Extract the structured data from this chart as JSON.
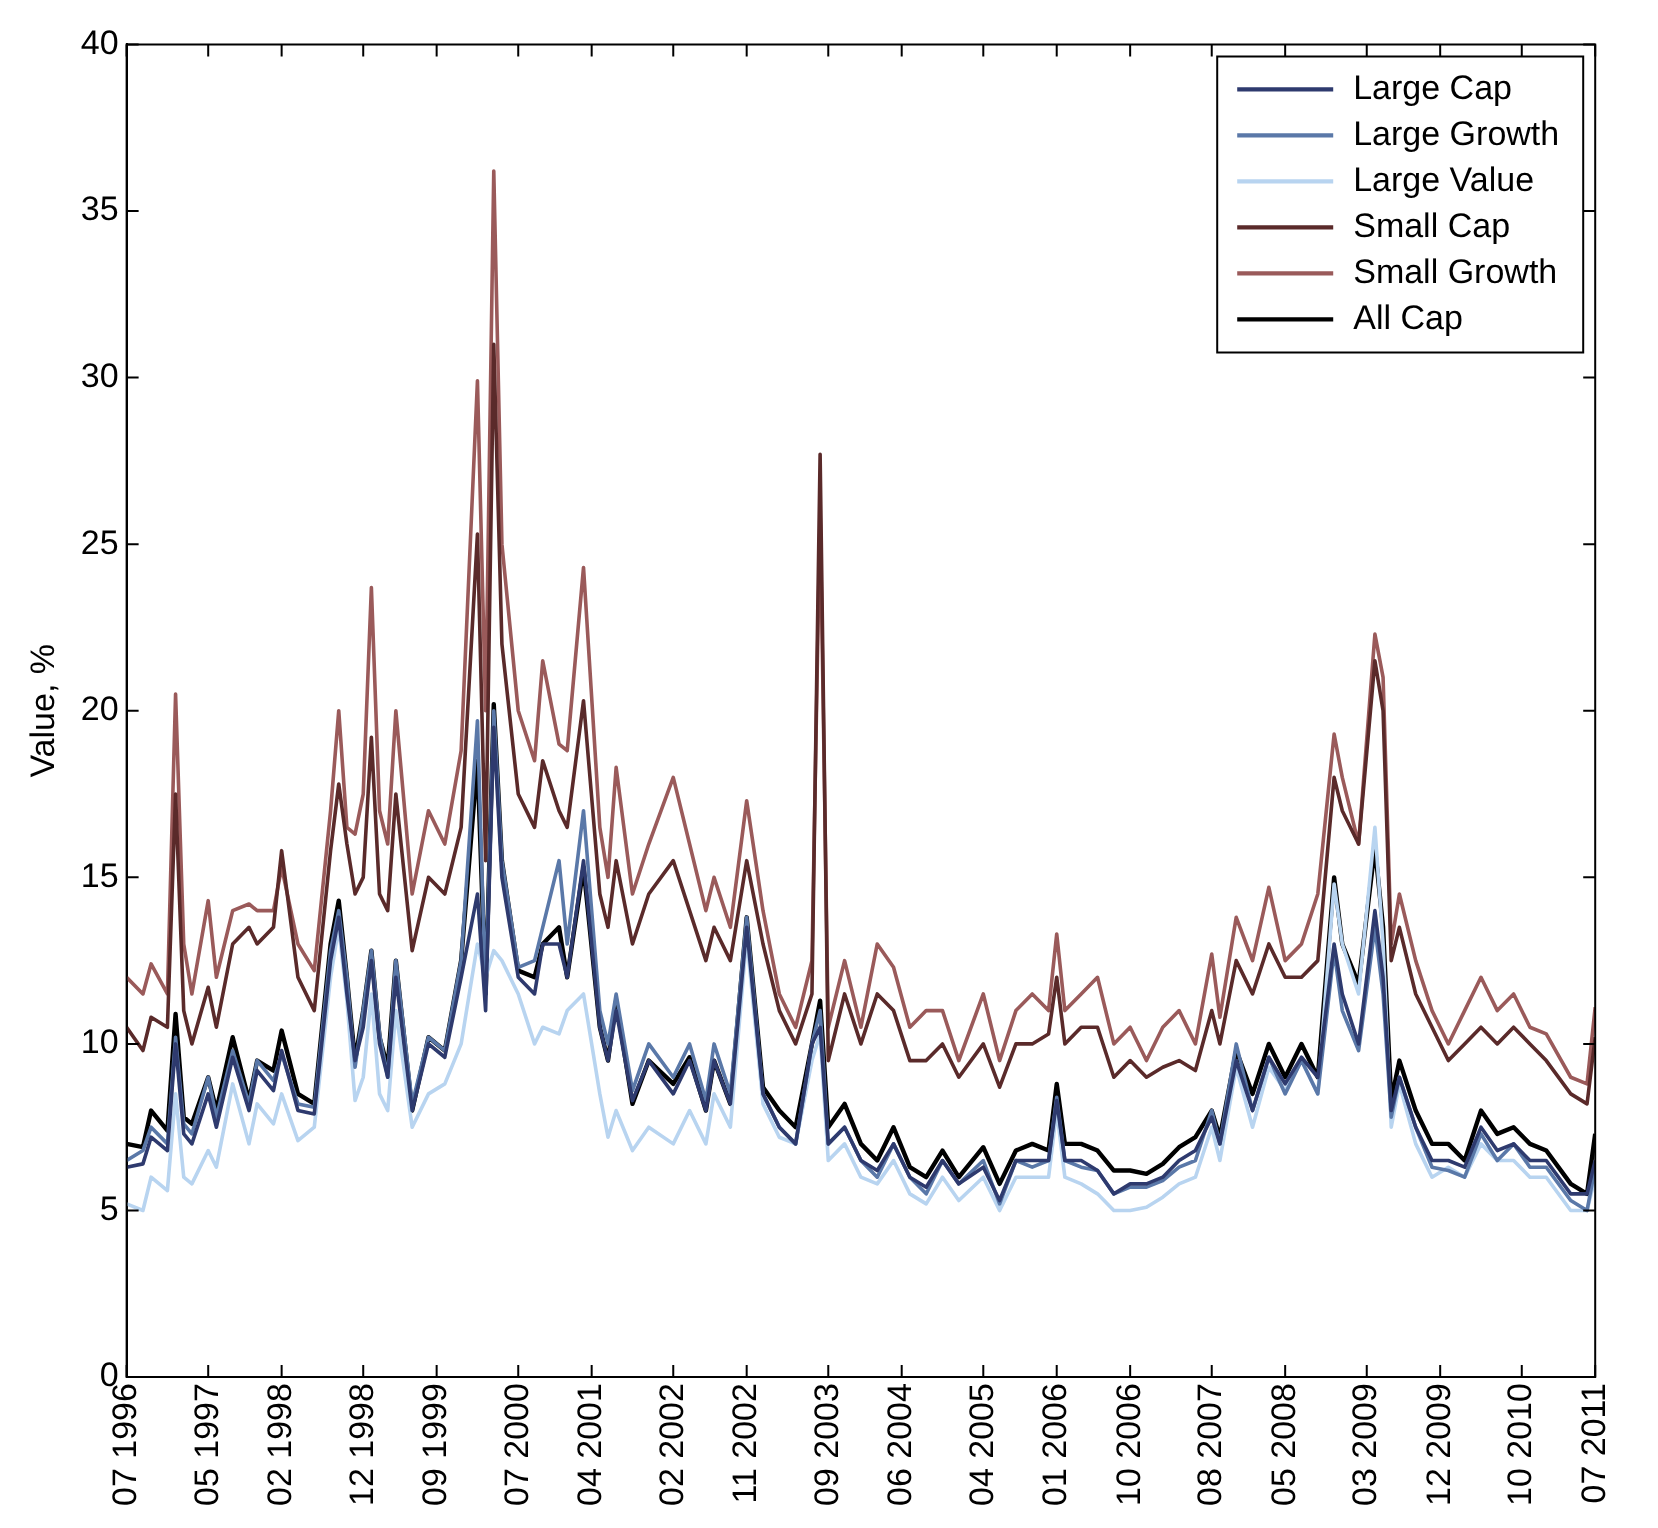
{
  "chart_data": {
    "type": "line",
    "ylabel": "Value, %",
    "xlim": [
      "1996-07",
      "2011-07"
    ],
    "ylim": [
      0,
      40
    ],
    "yticks": [
      0,
      5,
      10,
      15,
      20,
      25,
      30,
      35,
      40
    ],
    "xticks": [
      {
        "value": "1996-07",
        "label": "07 1996"
      },
      {
        "value": "1997-05",
        "label": "05 1997"
      },
      {
        "value": "1998-02",
        "label": "02 1998"
      },
      {
        "value": "1998-12",
        "label": "12 1998"
      },
      {
        "value": "1999-09",
        "label": "09 1999"
      },
      {
        "value": "2000-07",
        "label": "07 2000"
      },
      {
        "value": "2001-04",
        "label": "04 2001"
      },
      {
        "value": "2002-02",
        "label": "02 2002"
      },
      {
        "value": "2002-11",
        "label": "11 2002"
      },
      {
        "value": "2003-09",
        "label": "09 2003"
      },
      {
        "value": "2004-06",
        "label": "06 2004"
      },
      {
        "value": "2005-04",
        "label": "04 2005"
      },
      {
        "value": "2006-01",
        "label": "01 2006"
      },
      {
        "value": "2006-10",
        "label": "10 2006"
      },
      {
        "value": "2007-08",
        "label": "08 2007"
      },
      {
        "value": "2008-05",
        "label": "05 2008"
      },
      {
        "value": "2009-03",
        "label": "03 2009"
      },
      {
        "value": "2009-12",
        "label": "12 2009"
      },
      {
        "value": "2010-10",
        "label": "10 2010"
      },
      {
        "value": "2011-07",
        "label": "07 2011"
      }
    ],
    "x": [
      "1996-07",
      "1996-09",
      "1996-10",
      "1996-12",
      "1997-01",
      "1997-02",
      "1997-03",
      "1997-05",
      "1997-06",
      "1997-08",
      "1997-10",
      "1997-11",
      "1998-01",
      "1998-02",
      "1998-04",
      "1998-06",
      "1998-08",
      "1998-09",
      "1998-10",
      "1998-11",
      "1998-12",
      "1999-01",
      "1999-02",
      "1999-03",
      "1999-04",
      "1999-06",
      "1999-08",
      "1999-10",
      "1999-12",
      "2000-02",
      "2000-03",
      "2000-04",
      "2000-05",
      "2000-07",
      "2000-09",
      "2000-10",
      "2000-12",
      "2001-01",
      "2001-03",
      "2001-05",
      "2001-06",
      "2001-07",
      "2001-09",
      "2001-11",
      "2002-02",
      "2002-04",
      "2002-06",
      "2002-07",
      "2002-09",
      "2002-11",
      "2003-01",
      "2003-03",
      "2003-05",
      "2003-07",
      "2003-08",
      "2003-09",
      "2003-11",
      "2004-01",
      "2004-03",
      "2004-05",
      "2004-07",
      "2004-09",
      "2004-11",
      "2005-01",
      "2005-04",
      "2005-06",
      "2005-08",
      "2005-10",
      "2005-12",
      "2006-01",
      "2006-02",
      "2006-04",
      "2006-06",
      "2006-08",
      "2006-10",
      "2006-12",
      "2007-02",
      "2007-04",
      "2007-06",
      "2007-08",
      "2007-09",
      "2007-11",
      "2008-01",
      "2008-03",
      "2008-05",
      "2008-07",
      "2008-09",
      "2008-11",
      "2008-12",
      "2009-02",
      "2009-04",
      "2009-05",
      "2009-06",
      "2009-07",
      "2009-09",
      "2009-11",
      "2010-01",
      "2010-03",
      "2010-05",
      "2010-07",
      "2010-09",
      "2010-11",
      "2011-01",
      "2011-04",
      "2011-06",
      "2011-07"
    ],
    "series": [
      {
        "name": "Large Cap",
        "color": "#2e3a6e",
        "values": [
          6.3,
          6.4,
          7.2,
          6.8,
          10.0,
          7.3,
          7.0,
          8.5,
          7.5,
          9.6,
          8.0,
          9.2,
          8.6,
          9.8,
          8.0,
          7.9,
          12.5,
          13.8,
          11.5,
          9.5,
          10.5,
          12.5,
          10.0,
          9.0,
          12.0,
          8.0,
          10.0,
          9.6,
          12.0,
          14.5,
          11.0,
          19.5,
          15.0,
          12.0,
          11.5,
          13.0,
          13.0,
          12.0,
          15.5,
          10.5,
          9.5,
          11.0,
          8.3,
          9.5,
          8.5,
          9.5,
          8.0,
          9.5,
          8.2,
          13.5,
          8.5,
          7.5,
          7.0,
          10.0,
          10.5,
          7.0,
          7.5,
          6.5,
          6.2,
          7.0,
          6.0,
          5.7,
          6.5,
          5.8,
          6.3,
          5.3,
          6.5,
          6.5,
          6.5,
          8.3,
          6.5,
          6.5,
          6.2,
          5.5,
          5.8,
          5.8,
          6.0,
          6.5,
          6.8,
          7.8,
          7.0,
          9.5,
          8.0,
          9.6,
          8.8,
          9.6,
          9.0,
          13.0,
          11.5,
          10.0,
          14.0,
          12.0,
          8.0,
          9.0,
          7.5,
          6.5,
          6.5,
          6.3,
          7.5,
          6.8,
          7.0,
          6.5,
          6.5,
          5.5,
          5.5,
          6.5
        ]
      },
      {
        "name": "Large Growth",
        "color": "#5a78a8",
        "values": [
          6.5,
          6.8,
          7.5,
          7.0,
          10.2,
          7.6,
          7.3,
          9.0,
          7.8,
          9.8,
          8.2,
          9.5,
          8.9,
          9.7,
          8.2,
          8.1,
          12.8,
          14.0,
          12.0,
          9.3,
          11.0,
          12.8,
          10.3,
          9.0,
          12.5,
          8.2,
          10.2,
          9.8,
          12.5,
          19.7,
          11.5,
          20.0,
          15.5,
          12.3,
          12.5,
          13.5,
          15.5,
          13.0,
          17.0,
          11.0,
          10.0,
          11.5,
          8.6,
          10.0,
          9.0,
          10.0,
          8.3,
          10.0,
          8.5,
          13.8,
          8.5,
          7.5,
          7.0,
          10.0,
          11.0,
          7.0,
          7.5,
          6.5,
          6.0,
          7.0,
          6.0,
          5.5,
          6.5,
          5.8,
          6.5,
          5.2,
          6.5,
          6.3,
          6.5,
          8.4,
          6.5,
          6.3,
          6.2,
          5.5,
          5.7,
          5.7,
          5.9,
          6.3,
          6.5,
          8.0,
          7.0,
          10.0,
          8.0,
          9.6,
          8.5,
          9.5,
          8.5,
          12.8,
          11.0,
          9.8,
          13.5,
          11.5,
          7.8,
          9.0,
          7.5,
          6.3,
          6.2,
          6.0,
          7.3,
          6.5,
          7.0,
          6.3,
          6.3,
          5.3,
          5.0,
          6.3
        ]
      },
      {
        "name": "Large Value",
        "color": "#b8d4f0",
        "values": [
          5.2,
          5.0,
          6.0,
          5.6,
          8.5,
          6.0,
          5.8,
          6.8,
          6.3,
          8.8,
          7.0,
          8.2,
          7.6,
          8.5,
          7.1,
          7.5,
          12.0,
          13.5,
          11.3,
          8.3,
          9.0,
          11.5,
          8.5,
          8.0,
          11.0,
          7.5,
          8.5,
          8.8,
          10.0,
          13.0,
          12.0,
          12.8,
          12.5,
          11.5,
          10.0,
          10.5,
          10.3,
          11.0,
          11.5,
          8.5,
          7.2,
          8.0,
          6.8,
          7.5,
          7.0,
          8.0,
          7.0,
          8.5,
          7.5,
          13.2,
          8.2,
          7.2,
          7.0,
          9.5,
          10.3,
          6.5,
          7.0,
          6.0,
          5.8,
          6.5,
          5.5,
          5.2,
          6.0,
          5.3,
          6.0,
          5.0,
          6.0,
          6.0,
          6.0,
          8.0,
          6.0,
          5.8,
          5.5,
          5.0,
          5.0,
          5.1,
          5.4,
          5.8,
          6.0,
          7.5,
          6.5,
          9.3,
          7.5,
          9.3,
          8.6,
          9.5,
          8.5,
          14.8,
          13.0,
          11.5,
          16.5,
          13.0,
          7.5,
          8.8,
          7.0,
          6.0,
          6.3,
          6.0,
          7.0,
          6.5,
          6.5,
          6.0,
          6.0,
          5.0,
          5.0,
          6.0
        ]
      },
      {
        "name": "Small Cap",
        "color": "#5a2a2a",
        "values": [
          10.5,
          9.8,
          10.8,
          10.5,
          17.5,
          11.0,
          10.0,
          11.7,
          10.5,
          13.0,
          13.5,
          13.0,
          13.5,
          15.8,
          12.0,
          11.0,
          15.8,
          17.8,
          16.0,
          14.5,
          15.0,
          19.2,
          14.5,
          14.0,
          17.5,
          12.8,
          15.0,
          14.5,
          16.5,
          25.3,
          15.5,
          31.0,
          22.0,
          17.5,
          16.5,
          18.5,
          17.0,
          16.5,
          20.3,
          14.5,
          13.5,
          15.5,
          13.0,
          14.5,
          15.5,
          14.0,
          12.5,
          13.5,
          12.5,
          15.5,
          13.0,
          11.0,
          10.0,
          11.5,
          27.7,
          9.5,
          11.5,
          10.0,
          11.5,
          11.0,
          9.5,
          9.5,
          10.0,
          9.0,
          10.0,
          8.7,
          10.0,
          10.0,
          10.3,
          12.0,
          10.0,
          10.5,
          10.5,
          9.0,
          9.5,
          9.0,
          9.3,
          9.5,
          9.2,
          11.0,
          10.0,
          12.5,
          11.5,
          13.0,
          12.0,
          12.0,
          12.5,
          18.0,
          17.0,
          16.0,
          21.5,
          20.0,
          12.5,
          13.5,
          11.5,
          10.5,
          9.5,
          10.0,
          10.5,
          10.0,
          10.5,
          10.0,
          9.5,
          8.5,
          8.2,
          10.2
        ]
      },
      {
        "name": "Small Growth",
        "color": "#9a5a5a",
        "values": [
          12.0,
          11.5,
          12.4,
          11.5,
          20.5,
          13.0,
          11.5,
          14.3,
          12.0,
          14.0,
          14.2,
          14.0,
          14.0,
          15.3,
          13.0,
          12.2,
          17.0,
          20.0,
          16.5,
          16.3,
          17.5,
          23.7,
          17.0,
          16.0,
          20.0,
          14.5,
          17.0,
          16.0,
          18.8,
          29.9,
          20.0,
          36.2,
          25.0,
          20.0,
          18.5,
          21.5,
          19.0,
          18.8,
          24.3,
          16.5,
          15.0,
          18.3,
          14.5,
          16.0,
          18.0,
          16.0,
          14.0,
          15.0,
          13.5,
          17.3,
          14.0,
          11.5,
          10.5,
          12.5,
          26.0,
          10.5,
          12.5,
          10.5,
          13.0,
          12.3,
          10.5,
          11.0,
          11.0,
          9.5,
          11.5,
          9.5,
          11.0,
          11.5,
          11.0,
          13.3,
          11.0,
          11.5,
          12.0,
          10.0,
          10.5,
          9.5,
          10.5,
          11.0,
          10.0,
          12.7,
          10.8,
          13.8,
          12.5,
          14.7,
          12.5,
          13.0,
          14.5,
          19.3,
          18.0,
          16.0,
          22.3,
          21.0,
          13.0,
          14.5,
          12.5,
          11.0,
          10.0,
          11.0,
          12.0,
          11.0,
          11.5,
          10.5,
          10.3,
          9.0,
          8.8,
          11.1
        ]
      },
      {
        "name": "All Cap",
        "color": "#000000",
        "values": [
          7.0,
          6.9,
          8.0,
          7.4,
          10.9,
          7.8,
          7.6,
          9.0,
          8.0,
          10.2,
          8.3,
          9.5,
          9.2,
          10.4,
          8.5,
          8.2,
          13.0,
          14.3,
          12.0,
          9.5,
          11.0,
          12.8,
          10.2,
          9.3,
          12.5,
          8.0,
          10.2,
          9.8,
          12.5,
          18.5,
          11.5,
          20.2,
          15.5,
          12.2,
          12.0,
          13.0,
          13.5,
          12.0,
          15.3,
          10.5,
          9.5,
          11.3,
          8.2,
          9.5,
          8.8,
          9.6,
          8.0,
          9.5,
          8.2,
          13.8,
          8.7,
          8.0,
          7.5,
          10.0,
          11.3,
          7.5,
          8.2,
          7.0,
          6.5,
          7.5,
          6.3,
          6.0,
          6.8,
          6.0,
          6.9,
          5.8,
          6.8,
          7.0,
          6.8,
          8.8,
          7.0,
          7.0,
          6.8,
          6.2,
          6.2,
          6.1,
          6.4,
          6.9,
          7.2,
          8.0,
          7.2,
          9.8,
          8.5,
          10.0,
          9.0,
          10.0,
          9.0,
          15.0,
          13.0,
          11.8,
          15.9,
          13.5,
          8.3,
          9.5,
          8.0,
          7.0,
          7.0,
          6.5,
          8.0,
          7.3,
          7.5,
          7.0,
          6.8,
          5.8,
          5.5,
          7.3
        ]
      }
    ],
    "legend": "top right",
    "grid": false
  }
}
